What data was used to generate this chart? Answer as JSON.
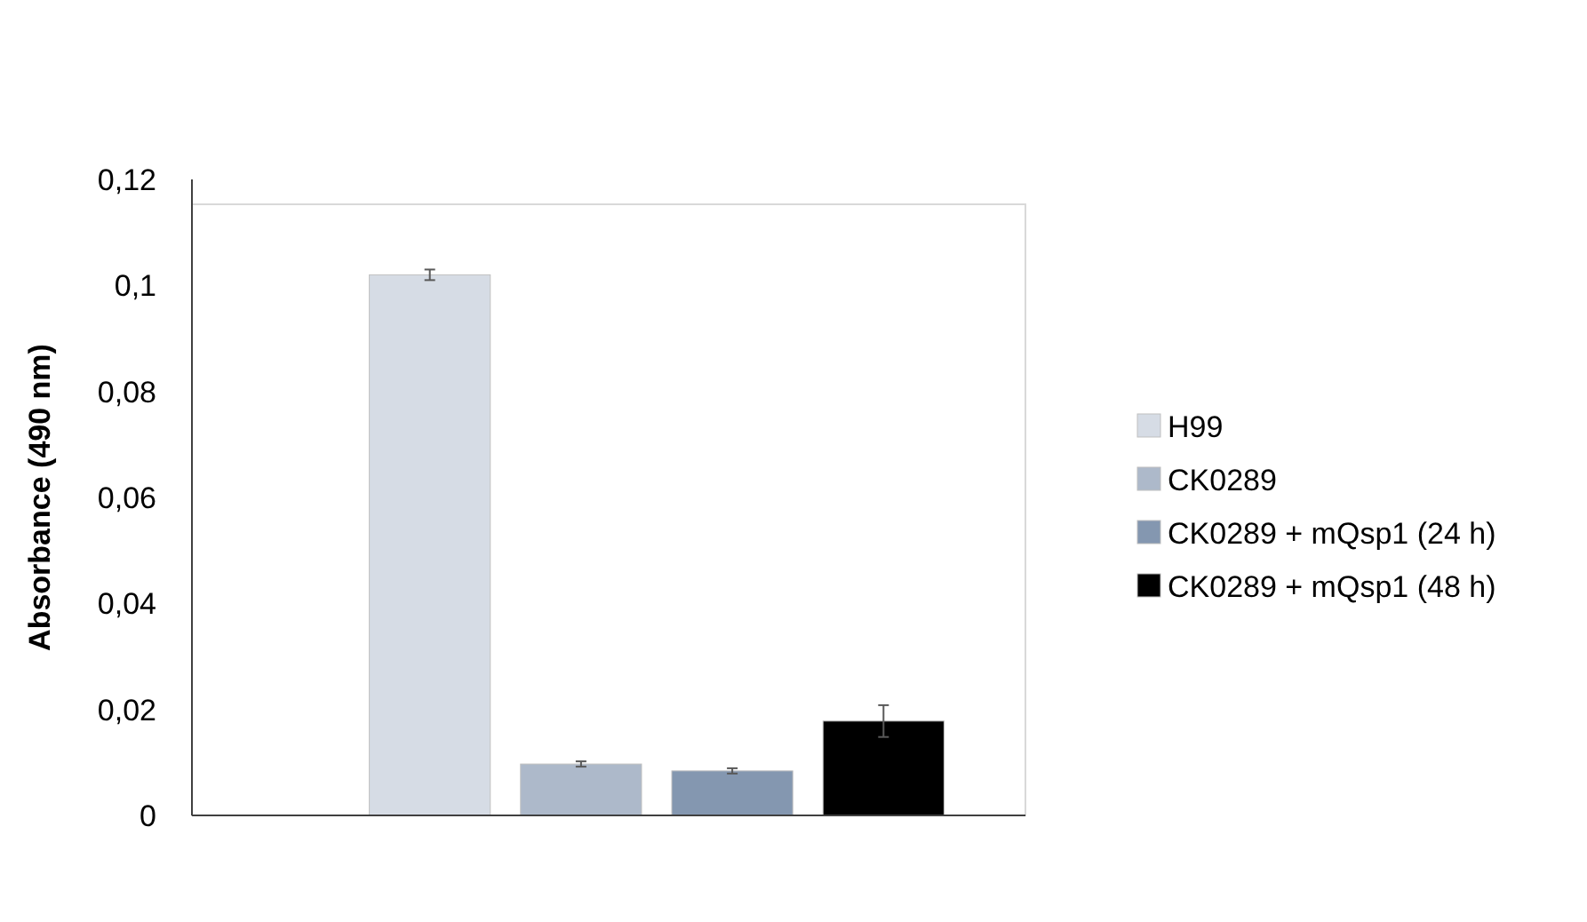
{
  "chart_data": {
    "type": "bar",
    "ylabel": "Absorbance (490 nm)",
    "categories": [
      null
    ],
    "series": [
      {
        "name": "H99",
        "color": "#d6dce5",
        "values": [
          0.102
        ],
        "errors": [
          0.001
        ]
      },
      {
        "name": "CK0289",
        "color": "#adb9ca",
        "values": [
          0.0097
        ],
        "errors": [
          0.0005
        ]
      },
      {
        "name": "CK0289 + mQsp1 (24 h)",
        "color": "#8497b0",
        "values": [
          0.0084
        ],
        "errors": [
          0.0005
        ]
      },
      {
        "name": "CK0289 + mQsp1 (48 h)",
        "color": "#000000",
        "values": [
          0.0178
        ],
        "errors": [
          0.003
        ]
      }
    ],
    "ylim": [
      0,
      0.12
    ],
    "yticks": [
      0,
      {
        "value": 0.02,
        "label": "0,02"
      },
      {
        "value": 0.04,
        "label": "0,04"
      },
      {
        "value": 0.06,
        "label": "0,06"
      },
      {
        "value": 0.08,
        "label": "0,08"
      },
      {
        "value": 0.1,
        "label": "0,1"
      },
      {
        "value": 0.12,
        "label": "0,12"
      }
    ],
    "grid": false,
    "legend": "right"
  }
}
